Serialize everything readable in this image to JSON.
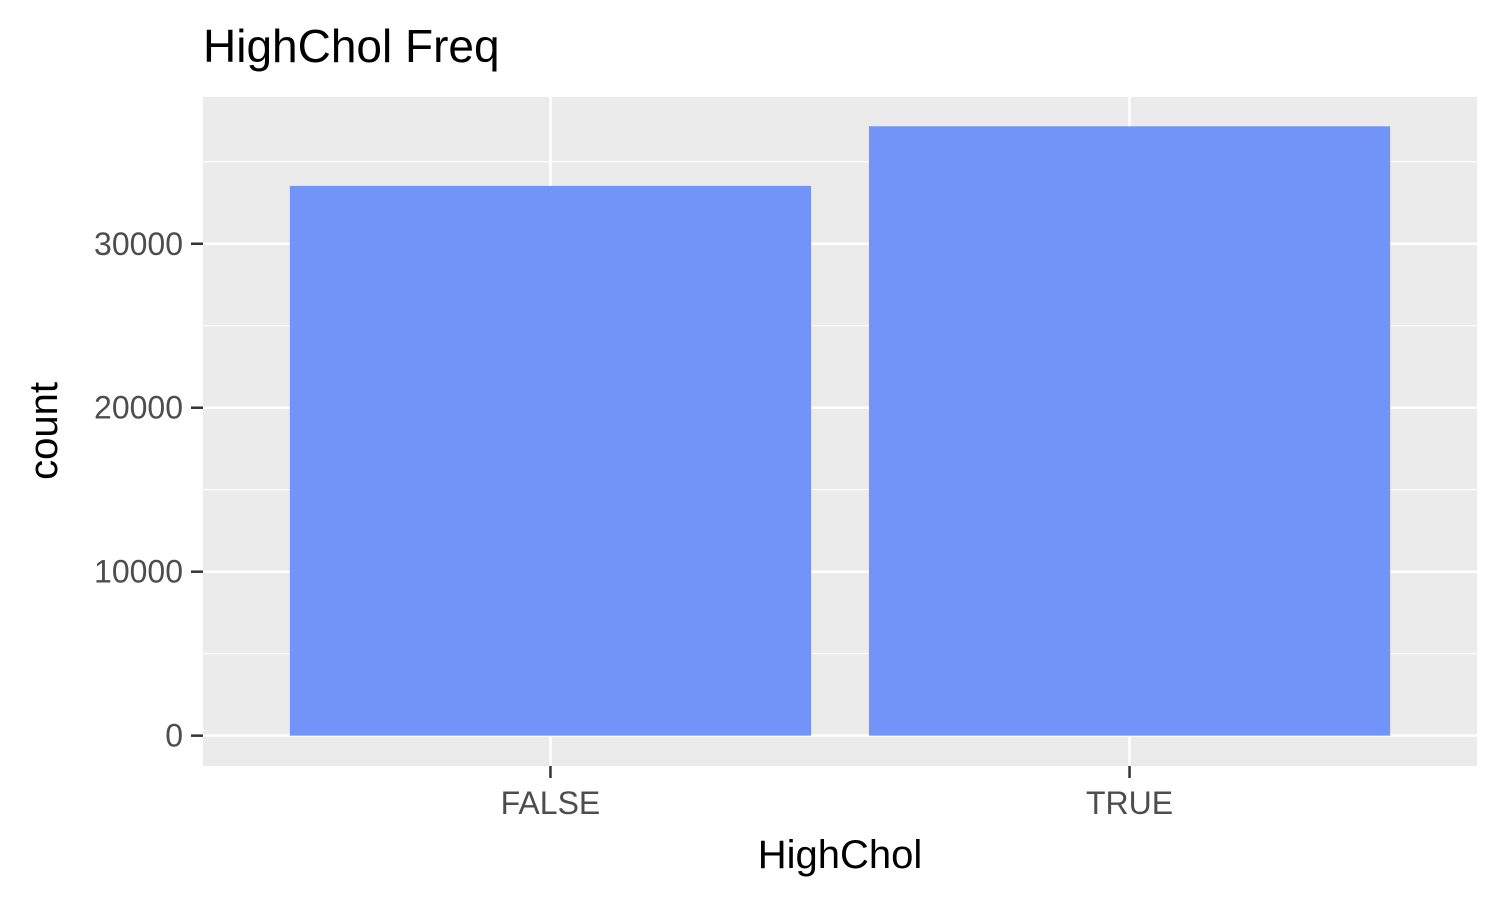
{
  "chart_data": {
    "type": "bar",
    "title": "HighChol Freq",
    "xlabel": "HighChol",
    "ylabel": "count",
    "categories": [
      "FALSE",
      "TRUE"
    ],
    "values": [
      33529,
      37163
    ],
    "ylim": [
      -1850,
      38950
    ],
    "yticks": [
      0,
      10000,
      20000,
      30000
    ],
    "ytick_labels": [
      "0",
      "10000",
      "20000",
      "30000"
    ],
    "grid": true,
    "colors": {
      "bar": "#7294F9",
      "panel": "#EBEBEB",
      "grid": "#FFFFFF",
      "ticks": "#333333"
    }
  }
}
